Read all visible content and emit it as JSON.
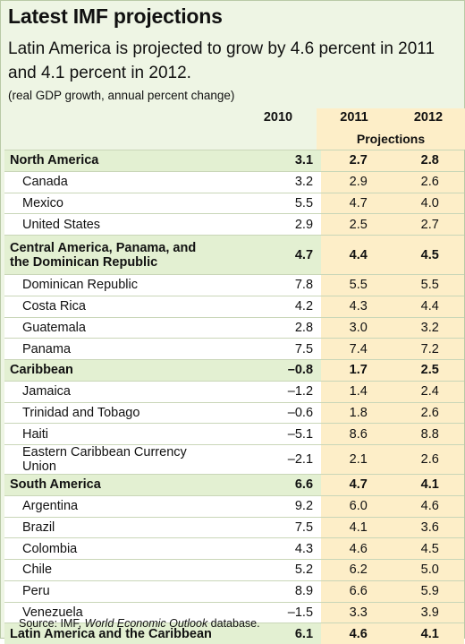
{
  "title": "Latest IMF projections",
  "subtitle": "Latin America is projected to grow by 4.6 percent in 2011 and 4.1 percent in 2012.",
  "note": "(real GDP growth, annual percent change)",
  "columns": [
    "2010",
    "2011",
    "2012"
  ],
  "projections_label": "Projections",
  "rows": [
    {
      "label": "North America",
      "group": true,
      "v": [
        "3.1",
        "2.7",
        "2.8"
      ]
    },
    {
      "label": "Canada",
      "group": false,
      "v": [
        "3.2",
        "2.9",
        "2.6"
      ]
    },
    {
      "label": "Mexico",
      "group": false,
      "v": [
        "5.5",
        "4.7",
        "4.0"
      ]
    },
    {
      "label": "United States",
      "group": false,
      "v": [
        "2.9",
        "2.5",
        "2.7"
      ]
    },
    {
      "label": "Central America, Panama, and the Dominican Republic",
      "group": true,
      "v": [
        "4.7",
        "4.4",
        "4.5"
      ]
    },
    {
      "label": "Dominican Republic",
      "group": false,
      "v": [
        "7.8",
        "5.5",
        "5.5"
      ]
    },
    {
      "label": "Costa Rica",
      "group": false,
      "v": [
        "4.2",
        "4.3",
        "4.4"
      ]
    },
    {
      "label": "Guatemala",
      "group": false,
      "v": [
        "2.8",
        "3.0",
        "3.2"
      ]
    },
    {
      "label": "Panama",
      "group": false,
      "v": [
        "7.5",
        "7.4",
        "7.2"
      ]
    },
    {
      "label": "Caribbean",
      "group": true,
      "v": [
        "–0.8",
        "1.7",
        "2.5"
      ]
    },
    {
      "label": "Jamaica",
      "group": false,
      "v": [
        "–1.2",
        "1.4",
        "2.4"
      ]
    },
    {
      "label": "Trinidad and Tobago",
      "group": false,
      "v": [
        "–0.6",
        "1.8",
        "2.6"
      ]
    },
    {
      "label": "Haiti",
      "group": false,
      "v": [
        "–5.1",
        "8.6",
        "8.8"
      ]
    },
    {
      "label": "Eastern Caribbean Currency Union",
      "group": false,
      "v": [
        "–2.1",
        "2.1",
        "2.6"
      ]
    },
    {
      "label": "South America",
      "group": true,
      "v": [
        "6.6",
        "4.7",
        "4.1"
      ]
    },
    {
      "label": "Argentina",
      "group": false,
      "v": [
        "9.2",
        "6.0",
        "4.6"
      ]
    },
    {
      "label": "Brazil",
      "group": false,
      "v": [
        "7.5",
        "4.1",
        "3.6"
      ]
    },
    {
      "label": "Colombia",
      "group": false,
      "v": [
        "4.3",
        "4.6",
        "4.5"
      ]
    },
    {
      "label": "Chile",
      "group": false,
      "v": [
        "5.2",
        "6.2",
        "5.0"
      ]
    },
    {
      "label": "Peru",
      "group": false,
      "v": [
        "8.9",
        "6.6",
        "5.9"
      ]
    },
    {
      "label": "Venezuela",
      "group": false,
      "v": [
        "–1.5",
        "3.3",
        "3.9"
      ]
    },
    {
      "label": "Latin America and the Caribbean",
      "group": true,
      "v": [
        "6.1",
        "4.6",
        "4.1"
      ]
    }
  ],
  "source_prefix": "Source: IMF, ",
  "source_italic": "World Economic Outlook",
  "source_suffix": " database."
}
